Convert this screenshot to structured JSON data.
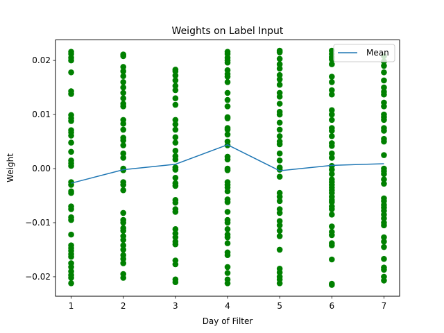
{
  "chart_data": {
    "type": "scatter",
    "title": "Weights on Label Input",
    "xlabel": "Day of Filter",
    "ylabel": "Weight",
    "xlim": [
      0.7,
      7.3
    ],
    "ylim": [
      -0.0236,
      0.0238
    ],
    "x_ticks": [
      1,
      2,
      3,
      4,
      5,
      6,
      7
    ],
    "y_ticks": [
      -0.02,
      -0.01,
      0.0,
      0.01,
      0.02
    ],
    "y_tick_labels": [
      "−0.02",
      "−0.01",
      "0.00",
      "0.01",
      "0.02"
    ],
    "grid": false,
    "legend": {
      "position": "top-right",
      "entries": [
        "Mean"
      ]
    },
    "colors": {
      "points": "#008000",
      "mean_line": "#1f77b4",
      "axes": "#000000"
    },
    "series": [
      {
        "name": "",
        "kind": "scatter",
        "points": [
          [
            1,
            0.0216
          ],
          [
            1,
            0.0212
          ],
          [
            1,
            0.0205
          ],
          [
            1,
            0.02
          ],
          [
            1,
            0.0178
          ],
          [
            1,
            0.0143
          ],
          [
            1,
            0.0138
          ],
          [
            1,
            0.0099
          ],
          [
            1,
            0.0093
          ],
          [
            1,
            0.0088
          ],
          [
            1,
            0.0071
          ],
          [
            1,
            0.0067
          ],
          [
            1,
            0.0061
          ],
          [
            1,
            0.0048
          ],
          [
            1,
            0.0031
          ],
          [
            1,
            0.0015
          ],
          [
            1,
            0.001
          ],
          [
            1,
            0.0005
          ],
          [
            1,
            -0.0025
          ],
          [
            1,
            -0.003
          ],
          [
            1,
            -0.0042
          ],
          [
            1,
            -0.0045
          ],
          [
            1,
            -0.007
          ],
          [
            1,
            -0.0075
          ],
          [
            1,
            -0.009
          ],
          [
            1,
            -0.0095
          ],
          [
            1,
            -0.0122
          ],
          [
            1,
            -0.0142
          ],
          [
            1,
            -0.0147
          ],
          [
            1,
            -0.0152
          ],
          [
            1,
            -0.0158
          ],
          [
            1,
            -0.0163
          ],
          [
            1,
            -0.0175
          ],
          [
            1,
            -0.0182
          ],
          [
            1,
            -0.019
          ],
          [
            1,
            -0.0197
          ],
          [
            1,
            -0.0202
          ],
          [
            1,
            -0.0212
          ],
          [
            2,
            0.0211
          ],
          [
            2,
            0.0208
          ],
          [
            2,
            0.0188
          ],
          [
            2,
            0.018
          ],
          [
            2,
            0.0171
          ],
          [
            2,
            0.016
          ],
          [
            2,
            0.015
          ],
          [
            2,
            0.014
          ],
          [
            2,
            0.013
          ],
          [
            2,
            0.012
          ],
          [
            2,
            0.0115
          ],
          [
            2,
            0.009
          ],
          [
            2,
            0.0083
          ],
          [
            2,
            0.0072
          ],
          [
            2,
            0.0057
          ],
          [
            2,
            0.0052
          ],
          [
            2,
            0.0043
          ],
          [
            2,
            0.0028
          ],
          [
            2,
            0.002
          ],
          [
            2,
            0.0
          ],
          [
            2,
            -0.0003
          ],
          [
            2,
            -0.0025
          ],
          [
            2,
            -0.003
          ],
          [
            2,
            -0.004
          ],
          [
            2,
            -0.0082
          ],
          [
            2,
            -0.0095
          ],
          [
            2,
            -0.01
          ],
          [
            2,
            -0.011
          ],
          [
            2,
            -0.0115
          ],
          [
            2,
            -0.0125
          ],
          [
            2,
            -0.0132
          ],
          [
            2,
            -0.0142
          ],
          [
            2,
            -0.015
          ],
          [
            2,
            -0.016
          ],
          [
            2,
            -0.0167
          ],
          [
            2,
            -0.0175
          ],
          [
            2,
            -0.0195
          ],
          [
            2,
            -0.0202
          ],
          [
            3,
            0.0183
          ],
          [
            3,
            0.018
          ],
          [
            3,
            0.0172
          ],
          [
            3,
            0.0163
          ],
          [
            3,
            0.0153
          ],
          [
            3,
            0.0145
          ],
          [
            3,
            0.013
          ],
          [
            3,
            0.0118
          ],
          [
            3,
            0.009
          ],
          [
            3,
            0.0082
          ],
          [
            3,
            0.0072
          ],
          [
            3,
            0.0058
          ],
          [
            3,
            0.0048
          ],
          [
            3,
            0.0033
          ],
          [
            3,
            0.0023
          ],
          [
            3,
            0.0017
          ],
          [
            3,
            0.0002
          ],
          [
            3,
            -0.0002
          ],
          [
            3,
            -0.0017
          ],
          [
            3,
            -0.0027
          ],
          [
            3,
            -0.0032
          ],
          [
            3,
            -0.0058
          ],
          [
            3,
            -0.0063
          ],
          [
            3,
            -0.0075
          ],
          [
            3,
            -0.008
          ],
          [
            3,
            -0.0112
          ],
          [
            3,
            -0.012
          ],
          [
            3,
            -0.0127
          ],
          [
            3,
            -0.0135
          ],
          [
            3,
            -0.014
          ],
          [
            3,
            -0.017
          ],
          [
            3,
            -0.0177
          ],
          [
            3,
            -0.0205
          ],
          [
            3,
            -0.021
          ],
          [
            4,
            0.0216
          ],
          [
            4,
            0.0212
          ],
          [
            4,
            0.0205
          ],
          [
            4,
            0.02
          ],
          [
            4,
            0.0196
          ],
          [
            4,
            0.0182
          ],
          [
            4,
            0.0175
          ],
          [
            4,
            0.017
          ],
          [
            4,
            0.016
          ],
          [
            4,
            0.014
          ],
          [
            4,
            0.0127
          ],
          [
            4,
            0.0115
          ],
          [
            4,
            0.0095
          ],
          [
            4,
            0.0093
          ],
          [
            4,
            0.0075
          ],
          [
            4,
            0.0072
          ],
          [
            4,
            0.0063
          ],
          [
            4,
            0.005
          ],
          [
            4,
            0.0043
          ],
          [
            4,
            0.0022
          ],
          [
            4,
            0.0017
          ],
          [
            4,
            0.0
          ],
          [
            4,
            -0.0003
          ],
          [
            4,
            -0.0025
          ],
          [
            4,
            -0.003
          ],
          [
            4,
            -0.0035
          ],
          [
            4,
            -0.0042
          ],
          [
            4,
            -0.0057
          ],
          [
            4,
            -0.0062
          ],
          [
            4,
            -0.008
          ],
          [
            4,
            -0.0095
          ],
          [
            4,
            -0.01
          ],
          [
            4,
            -0.0112
          ],
          [
            4,
            -0.0122
          ],
          [
            4,
            -0.0127
          ],
          [
            4,
            -0.0138
          ],
          [
            4,
            -0.0155
          ],
          [
            4,
            -0.016
          ],
          [
            4,
            -0.0182
          ],
          [
            4,
            -0.0193
          ],
          [
            4,
            -0.0205
          ],
          [
            4,
            -0.0212
          ],
          [
            5,
            0.0218
          ],
          [
            5,
            0.0215
          ],
          [
            5,
            0.0203
          ],
          [
            5,
            0.0193
          ],
          [
            5,
            0.0185
          ],
          [
            5,
            0.0173
          ],
          [
            5,
            0.0165
          ],
          [
            5,
            0.0155
          ],
          [
            5,
            0.014
          ],
          [
            5,
            0.0133
          ],
          [
            5,
            0.012
          ],
          [
            5,
            0.0105
          ],
          [
            5,
            0.01
          ],
          [
            5,
            0.0085
          ],
          [
            5,
            0.0072
          ],
          [
            5,
            0.006
          ],
          [
            5,
            0.005
          ],
          [
            5,
            0.0045
          ],
          [
            5,
            0.0028
          ],
          [
            5,
            0.0015
          ],
          [
            5,
            0.0002
          ],
          [
            5,
            -0.0002
          ],
          [
            5,
            -0.0015
          ],
          [
            5,
            -0.0045
          ],
          [
            5,
            -0.0052
          ],
          [
            5,
            -0.006
          ],
          [
            5,
            -0.0075
          ],
          [
            5,
            -0.0082
          ],
          [
            5,
            -0.0097
          ],
          [
            5,
            -0.0105
          ],
          [
            5,
            -0.0115
          ],
          [
            5,
            -0.0125
          ],
          [
            5,
            -0.015
          ],
          [
            5,
            -0.0185
          ],
          [
            5,
            -0.0192
          ],
          [
            5,
            -0.02
          ],
          [
            5,
            -0.0205
          ],
          [
            5,
            -0.0212
          ],
          [
            6,
            0.0218
          ],
          [
            6,
            0.0212
          ],
          [
            6,
            0.0206
          ],
          [
            6,
            0.0202
          ],
          [
            6,
            0.0193
          ],
          [
            6,
            0.017
          ],
          [
            6,
            0.016
          ],
          [
            6,
            0.0145
          ],
          [
            6,
            0.0137
          ],
          [
            6,
            0.0108
          ],
          [
            6,
            0.01
          ],
          [
            6,
            0.009
          ],
          [
            6,
            0.0075
          ],
          [
            6,
            0.007
          ],
          [
            6,
            0.006
          ],
          [
            6,
            0.0047
          ],
          [
            6,
            0.0042
          ],
          [
            6,
            0.0028
          ],
          [
            6,
            0.002
          ],
          [
            6,
            0.0005
          ],
          [
            6,
            -0.0002
          ],
          [
            6,
            -0.001
          ],
          [
            6,
            -0.002
          ],
          [
            6,
            -0.0025
          ],
          [
            6,
            -0.003
          ],
          [
            6,
            -0.0035
          ],
          [
            6,
            -0.004
          ],
          [
            6,
            -0.0045
          ],
          [
            6,
            -0.0052
          ],
          [
            6,
            -0.0058
          ],
          [
            6,
            -0.0062
          ],
          [
            6,
            -0.007
          ],
          [
            6,
            -0.0075
          ],
          [
            6,
            -0.0085
          ],
          [
            6,
            -0.0107
          ],
          [
            6,
            -0.0117
          ],
          [
            6,
            -0.0123
          ],
          [
            6,
            -0.0138
          ],
          [
            6,
            -0.0142
          ],
          [
            6,
            -0.0168
          ],
          [
            6,
            -0.0213
          ],
          [
            6,
            -0.0215
          ],
          [
            7,
            0.0208
          ],
          [
            7,
            0.0198
          ],
          [
            7,
            0.019
          ],
          [
            7,
            0.0178
          ],
          [
            7,
            0.0163
          ],
          [
            7,
            0.015
          ],
          [
            7,
            0.0142
          ],
          [
            7,
            0.0137
          ],
          [
            7,
            0.0122
          ],
          [
            7,
            0.0115
          ],
          [
            7,
            0.01
          ],
          [
            7,
            0.0095
          ],
          [
            7,
            0.009
          ],
          [
            7,
            0.0075
          ],
          [
            7,
            0.007
          ],
          [
            7,
            0.0055
          ],
          [
            7,
            0.005
          ],
          [
            7,
            0.0025
          ],
          [
            7,
            0.0
          ],
          [
            7,
            -0.0005
          ],
          [
            7,
            -0.001
          ],
          [
            7,
            -0.002
          ],
          [
            7,
            -0.0028
          ],
          [
            7,
            -0.0055
          ],
          [
            7,
            -0.006
          ],
          [
            7,
            -0.0067
          ],
          [
            7,
            -0.0072
          ],
          [
            7,
            -0.0078
          ],
          [
            7,
            -0.0085
          ],
          [
            7,
            -0.0092
          ],
          [
            7,
            -0.01
          ],
          [
            7,
            -0.0105
          ],
          [
            7,
            -0.0127
          ],
          [
            7,
            -0.0135
          ],
          [
            7,
            -0.0145
          ],
          [
            7,
            -0.0167
          ],
          [
            7,
            -0.0183
          ],
          [
            7,
            -0.0187
          ],
          [
            7,
            -0.02
          ],
          [
            7,
            -0.0207
          ]
        ]
      },
      {
        "name": "Mean",
        "kind": "line",
        "x": [
          1,
          2,
          3,
          4,
          5,
          6,
          7
        ],
        "y": [
          -0.0027,
          -0.0002,
          0.0008,
          0.0044,
          -0.0004,
          0.0006,
          0.0009
        ]
      }
    ]
  }
}
